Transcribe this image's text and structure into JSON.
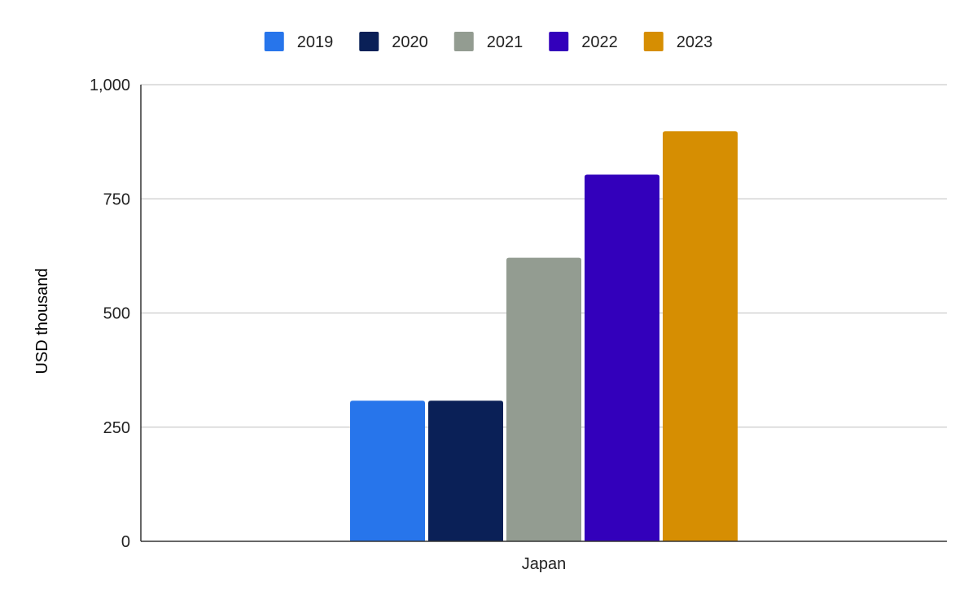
{
  "chart_data": {
    "type": "bar",
    "categories": [
      "Japan"
    ],
    "series": [
      {
        "name": "2019",
        "values": [
          308
        ],
        "color": "#2775eb"
      },
      {
        "name": "2020",
        "values": [
          308
        ],
        "color": "#0a2057"
      },
      {
        "name": "2021",
        "values": [
          621
        ],
        "color": "#939c91"
      },
      {
        "name": "2022",
        "values": [
          803
        ],
        "color": "#3300bb"
      },
      {
        "name": "2023",
        "values": [
          898
        ],
        "color": "#d68e02"
      }
    ],
    "title": "",
    "xlabel": "",
    "ylabel": "USD thousand",
    "ylim": [
      0,
      1000
    ],
    "yticks": [
      0,
      250,
      500,
      750,
      1000
    ],
    "ytick_labels": [
      "0",
      "250",
      "500",
      "750",
      "1,000"
    ],
    "grid": true,
    "legend_position": "top-center"
  }
}
